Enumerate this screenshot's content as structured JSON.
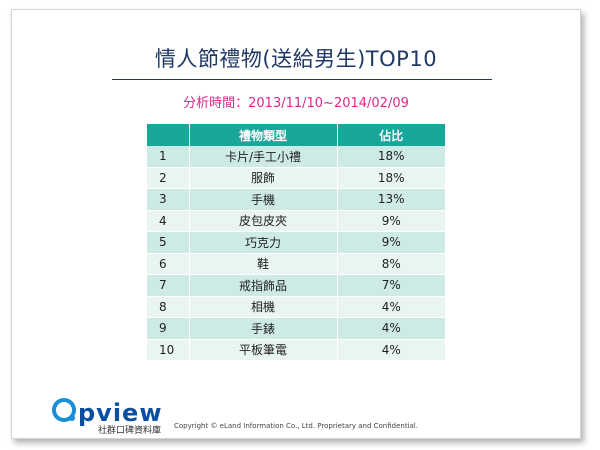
{
  "slide": {
    "title": "情人節禮物(送給男生)TOP10",
    "subtitle": "分析時間：2013/11/10~2014/02/09"
  },
  "table": {
    "headers": [
      "",
      "禮物類型",
      "佔比"
    ],
    "rows": [
      {
        "rank": "1",
        "type": "卡片/手工小禮",
        "share": "18%"
      },
      {
        "rank": "2",
        "type": "服飾",
        "share": "18%"
      },
      {
        "rank": "3",
        "type": "手機",
        "share": "13%"
      },
      {
        "rank": "4",
        "type": "皮包皮夾",
        "share": "9%"
      },
      {
        "rank": "5",
        "type": "巧克力",
        "share": "9%"
      },
      {
        "rank": "6",
        "type": "鞋",
        "share": "8%"
      },
      {
        "rank": "7",
        "type": "戒指飾品",
        "share": "7%"
      },
      {
        "rank": "8",
        "type": "相機",
        "share": "4%"
      },
      {
        "rank": "9",
        "type": "手錶",
        "share": "4%"
      },
      {
        "rank": "10",
        "type": "平板筆電",
        "share": "4%"
      }
    ]
  },
  "logo": {
    "word": "opview",
    "tagline": "社群口碑資料庫"
  },
  "footer": {
    "copyright": "Copyright © eLand Information Co., Ltd. Proprietary and Confidential."
  },
  "colors": {
    "title": "#1f3864",
    "subtitle": "#e0278a",
    "header_bg": "#18a79a",
    "row_odd": "#cdeae4",
    "row_even": "#e8f5f1",
    "logo": "#0a4ea0"
  }
}
